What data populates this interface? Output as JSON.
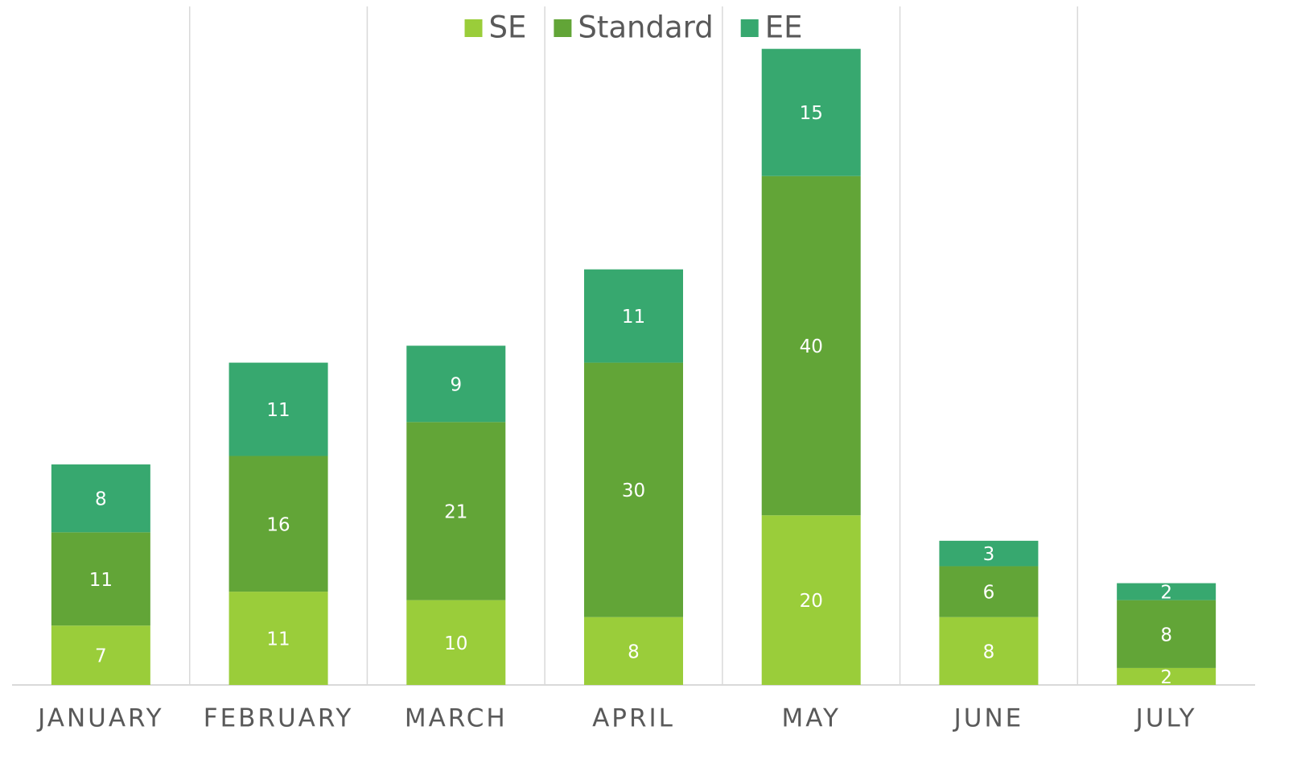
{
  "chart_data": {
    "type": "stacked_bar",
    "categories": [
      "JANUARY",
      "FEBRUARY",
      "MARCH",
      "APRIL",
      "MAY",
      "JUNE",
      "JULY"
    ],
    "series": [
      {
        "name": "SE",
        "color": "#9acd3a",
        "values": [
          7,
          11,
          10,
          8,
          20,
          8,
          2
        ]
      },
      {
        "name": "Standard",
        "color": "#62a537",
        "values": [
          11,
          16,
          21,
          30,
          40,
          6,
          8
        ]
      },
      {
        "name": "EE",
        "color": "#37a86f",
        "values": [
          8,
          11,
          9,
          11,
          15,
          3,
          2
        ]
      }
    ],
    "ylim": [
      0,
      80
    ],
    "legend": "top"
  }
}
